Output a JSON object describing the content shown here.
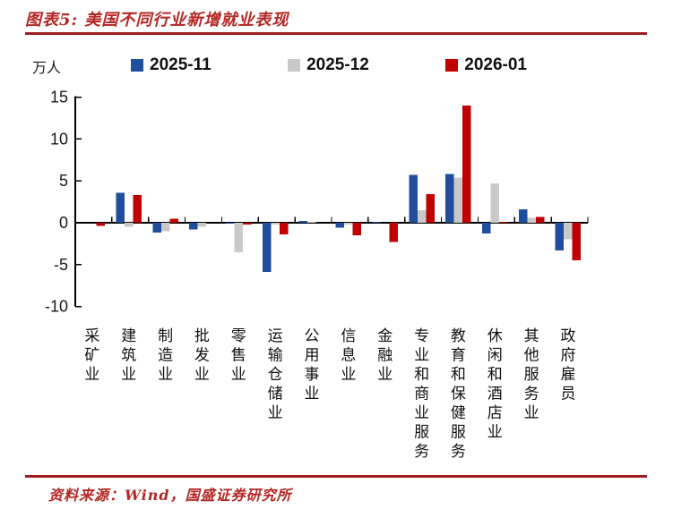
{
  "header": {
    "title": "图表5: 美国不同行业新增就业表现"
  },
  "footer": {
    "source": "资料来源：Wind，国盛证券研究所"
  },
  "chart_data": {
    "type": "bar",
    "title": "美国不同行业新增就业表现",
    "unit_label": "万人",
    "ylabel": "万人",
    "xlabel": "",
    "ylim": [
      -10,
      15
    ],
    "yticks": [
      15,
      10,
      5,
      0,
      -5,
      -10
    ],
    "grid": false,
    "legend_position": "top",
    "categories": [
      "采矿业",
      "建筑业",
      "制造业",
      "批发业",
      "零售业",
      "运输仓储业",
      "公用事业",
      "信息业",
      "金融业",
      "专业和商业服务",
      "教育和保健服务",
      "休闲和酒店业",
      "其他服务业",
      "政府雇员"
    ],
    "series": [
      {
        "name": "2025-11",
        "color": "#1f4e9c",
        "values": [
          0,
          3.6,
          -1.2,
          -0.8,
          -0.1,
          -5.9,
          0.2,
          -0.6,
          0.1,
          5.7,
          5.8,
          -1.3,
          1.6,
          -3.3
        ]
      },
      {
        "name": "2025-12",
        "color": "#c9c9c9",
        "values": [
          0,
          -0.5,
          -1.0,
          -0.5,
          -3.5,
          -0.2,
          0.1,
          -0.2,
          0,
          1.5,
          5.4,
          4.7,
          0.6,
          -2.0
        ]
      },
      {
        "name": "2026-01",
        "color": "#c00000",
        "values": [
          -0.4,
          3.3,
          0.5,
          0,
          -0.2,
          -1.4,
          0,
          -1.5,
          -2.3,
          3.4,
          14.0,
          0.1,
          0.7,
          -4.5
        ]
      }
    ]
  },
  "colors": {
    "accent_text": "#b32724",
    "rule": "#9e1c1f",
    "axis": "#000000"
  }
}
